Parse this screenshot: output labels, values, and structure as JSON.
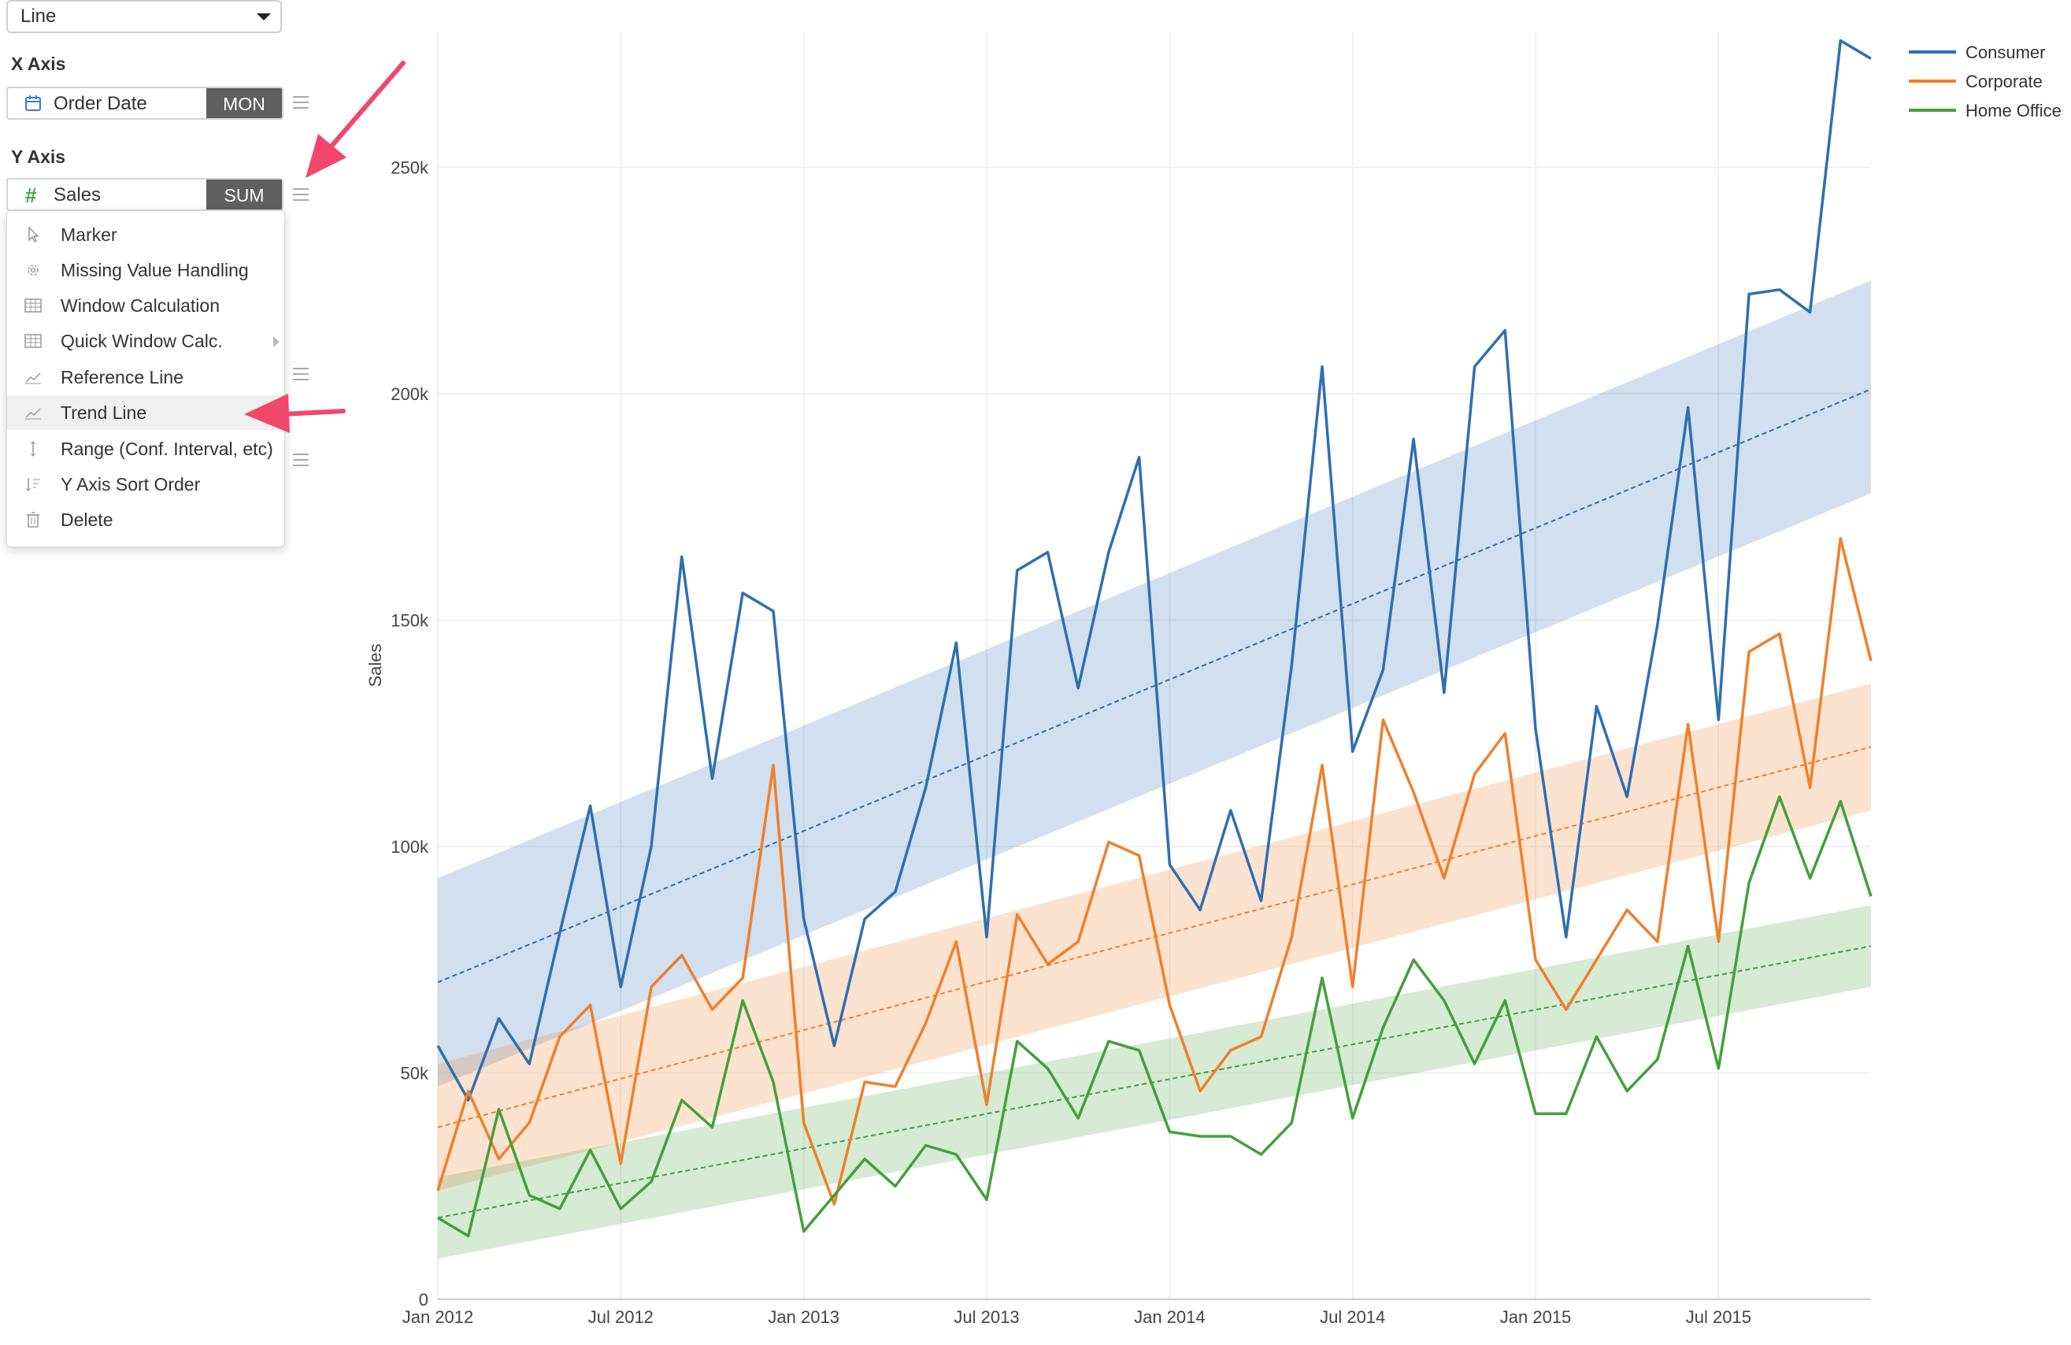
{
  "chart_type_select": {
    "value": "Line"
  },
  "x_axis": {
    "title": "X Axis",
    "field": "Order Date",
    "aggregation": "MON"
  },
  "y_axis": {
    "title": "Y Axis",
    "field": "Sales",
    "aggregation": "SUM"
  },
  "context_menu": {
    "items": [
      {
        "label": "Marker",
        "icon": "cursor-icon"
      },
      {
        "label": "Missing Value Handling",
        "icon": "gear-icon"
      },
      {
        "label": "Window Calculation",
        "icon": "table-icon"
      },
      {
        "label": "Quick Window Calc.",
        "icon": "table-icon",
        "has_submenu": true
      },
      {
        "label": "Reference Line",
        "icon": "line-chart-icon"
      },
      {
        "label": "Trend Line",
        "icon": "line-chart-icon",
        "active": true
      },
      {
        "label": "Range (Conf. Interval, etc)",
        "icon": "vertical-arrows-icon"
      },
      {
        "label": "Y Axis Sort Order",
        "icon": "sort-icon"
      },
      {
        "label": "Delete",
        "icon": "trash-icon"
      }
    ]
  },
  "colors": {
    "accent_arrow": "#f0476b",
    "agg_bg": "#5f5f5f",
    "consumer": "#2e6fb0",
    "corporate": "#f07f2a",
    "home_office": "#43a03c"
  },
  "chart_data": {
    "type": "line",
    "ylabel": "Sales",
    "xlabel": "",
    "ylim": [
      0,
      280000
    ],
    "yticks": [
      0,
      50000,
      100000,
      150000,
      200000,
      250000
    ],
    "ytick_labels": [
      "0",
      "50k",
      "100k",
      "150k",
      "200k",
      "250k"
    ],
    "xtick_labels": [
      "Jan 2012",
      "Jul 2012",
      "Jan 2013",
      "Jul 2013",
      "Jan 2014",
      "Jul 2014",
      "Jan 2015",
      "Jul 2015"
    ],
    "x_start": "Jan 2012",
    "x_end": "Dec 2015",
    "legend_position": "top-right",
    "grid": true,
    "series": [
      {
        "name": "Consumer",
        "values": [
          56000,
          44000,
          62000,
          52000,
          81000,
          109000,
          69000,
          100000,
          164000,
          115000,
          156000,
          152000,
          84000,
          56000,
          84000,
          90000,
          113000,
          145000,
          80000,
          161000,
          165000,
          135000,
          165000,
          186000,
          96000,
          86000,
          108000,
          88000,
          140000,
          206000,
          121000,
          139000,
          190000,
          134000,
          206000,
          214000,
          126000,
          80000,
          131000,
          111000,
          149000,
          197000,
          128000,
          222000,
          223000,
          218000,
          278000,
          274000
        ],
        "trend": {
          "start": 70000,
          "end": 201000,
          "band_lower_start": 47000,
          "band_upper_start": 93000,
          "band_lower_end": 178000,
          "band_upper_end": 225000
        }
      },
      {
        "name": "Corporate",
        "values": [
          24000,
          46000,
          31000,
          39000,
          58000,
          65000,
          30000,
          69000,
          76000,
          64000,
          71000,
          118000,
          39000,
          21000,
          48000,
          47000,
          61000,
          79000,
          43000,
          85000,
          74000,
          79000,
          101000,
          98000,
          65000,
          46000,
          55000,
          58000,
          80000,
          118000,
          69000,
          128000,
          112000,
          93000,
          116000,
          125000,
          75000,
          64000,
          75000,
          86000,
          79000,
          127000,
          79000,
          143000,
          147000,
          113000,
          168000,
          141000
        ],
        "trend": {
          "start": 38000,
          "end": 122000,
          "band_lower_start": 24000,
          "band_upper_start": 52000,
          "band_lower_end": 108000,
          "band_upper_end": 136000
        }
      },
      {
        "name": "Home Office",
        "values": [
          18000,
          14000,
          42000,
          23000,
          20000,
          33000,
          20000,
          26000,
          44000,
          38000,
          66000,
          48000,
          15000,
          23000,
          31000,
          25000,
          34000,
          32000,
          22000,
          57000,
          51000,
          40000,
          57000,
          55000,
          37000,
          36000,
          36000,
          32000,
          39000,
          71000,
          40000,
          60000,
          75000,
          66000,
          52000,
          66000,
          41000,
          41000,
          58000,
          46000,
          53000,
          78000,
          51000,
          92000,
          111000,
          93000,
          110000,
          89000
        ],
        "trend": {
          "start": 18000,
          "end": 78000,
          "band_lower_start": 9000,
          "band_upper_start": 27000,
          "band_lower_end": 69000,
          "band_upper_end": 87000
        }
      }
    ]
  }
}
